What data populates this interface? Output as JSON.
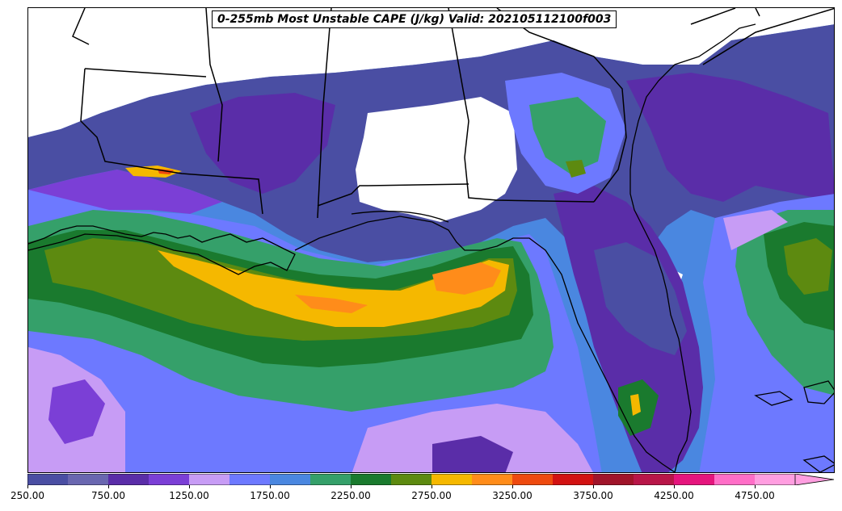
{
  "title": "0-255mb Most Unstable CAPE (J/kg) Valid: 202105112100f003",
  "colorbar": {
    "min": 250,
    "max": 5000,
    "step": 250,
    "extend": "max",
    "tick_labels": [
      "250.00",
      "750.00",
      "1250.00",
      "1750.00",
      "2250.00",
      "2750.00",
      "3250.00",
      "3750.00",
      "4250.00",
      "4750.00"
    ],
    "colors": [
      "#4a4ea3",
      "#6a67b0",
      "#5a2da8",
      "#7b3fd6",
      "#c79cf5",
      "#6d79ff",
      "#4a87e0",
      "#35a06a",
      "#1a7a2e",
      "#5d8a10",
      "#f5b800",
      "#ff8c1a",
      "#ee4a0f",
      "#d21212",
      "#a0142a",
      "#b81648",
      "#e5157d",
      "#ff6ec7",
      "#ff9ee0"
    ]
  },
  "map": {
    "region": "Gulf of Mexico and southeastern United States",
    "features": [
      "state-borders",
      "coastlines"
    ]
  }
}
